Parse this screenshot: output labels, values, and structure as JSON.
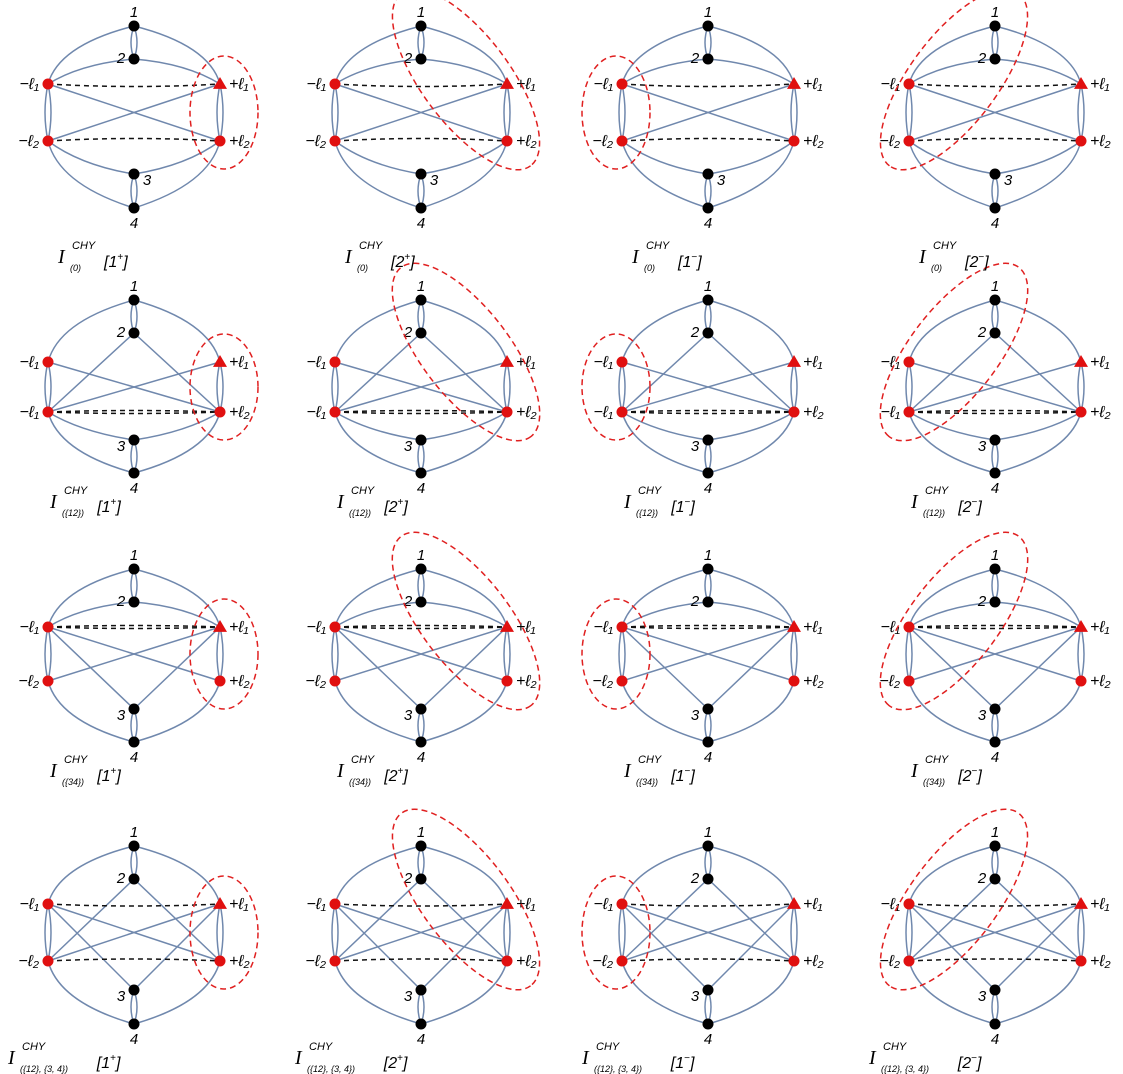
{
  "colors": {
    "edge": "#7088ad",
    "dashed": "#111111",
    "vertex_black": "#000000",
    "vertex_red": "#e01010",
    "cut": "#e02020"
  },
  "labels": {
    "v1": "1",
    "v2": "2",
    "v3": "3",
    "v4": "4",
    "mL1": "−ℓ₁",
    "mL2": "−ℓ₂",
    "pL1": "+ℓ₁",
    "pL2": "+ℓ₂"
  },
  "rows": [
    {
      "variant": "zero",
      "left_labels": [
        "−ℓ₁",
        "−ℓ₂"
      ],
      "caption_sub": "(0)"
    },
    {
      "variant": "p12",
      "left_labels": [
        "−ℓ₁",
        "−ℓ₁"
      ],
      "caption_sub": "({12})"
    },
    {
      "variant": "p34",
      "left_labels": [
        "−ℓ₁",
        "−ℓ₂"
      ],
      "caption_sub": "({34})"
    },
    {
      "variant": "both",
      "left_labels": [
        "−ℓ₁",
        "−ℓ₂"
      ],
      "caption_sub": "({12}, {3, 4})"
    }
  ],
  "columns": [
    {
      "cut": "1+",
      "caption_arg": "1",
      "caption_sign": "+"
    },
    {
      "cut": "2+",
      "caption_arg": "2",
      "caption_sign": "+"
    },
    {
      "cut": "1-",
      "caption_arg": "1",
      "caption_sign": "−"
    },
    {
      "cut": "2-",
      "caption_arg": "2",
      "caption_sign": "−"
    }
  ],
  "caption_symbol": "I",
  "caption_sup": "CHY"
}
